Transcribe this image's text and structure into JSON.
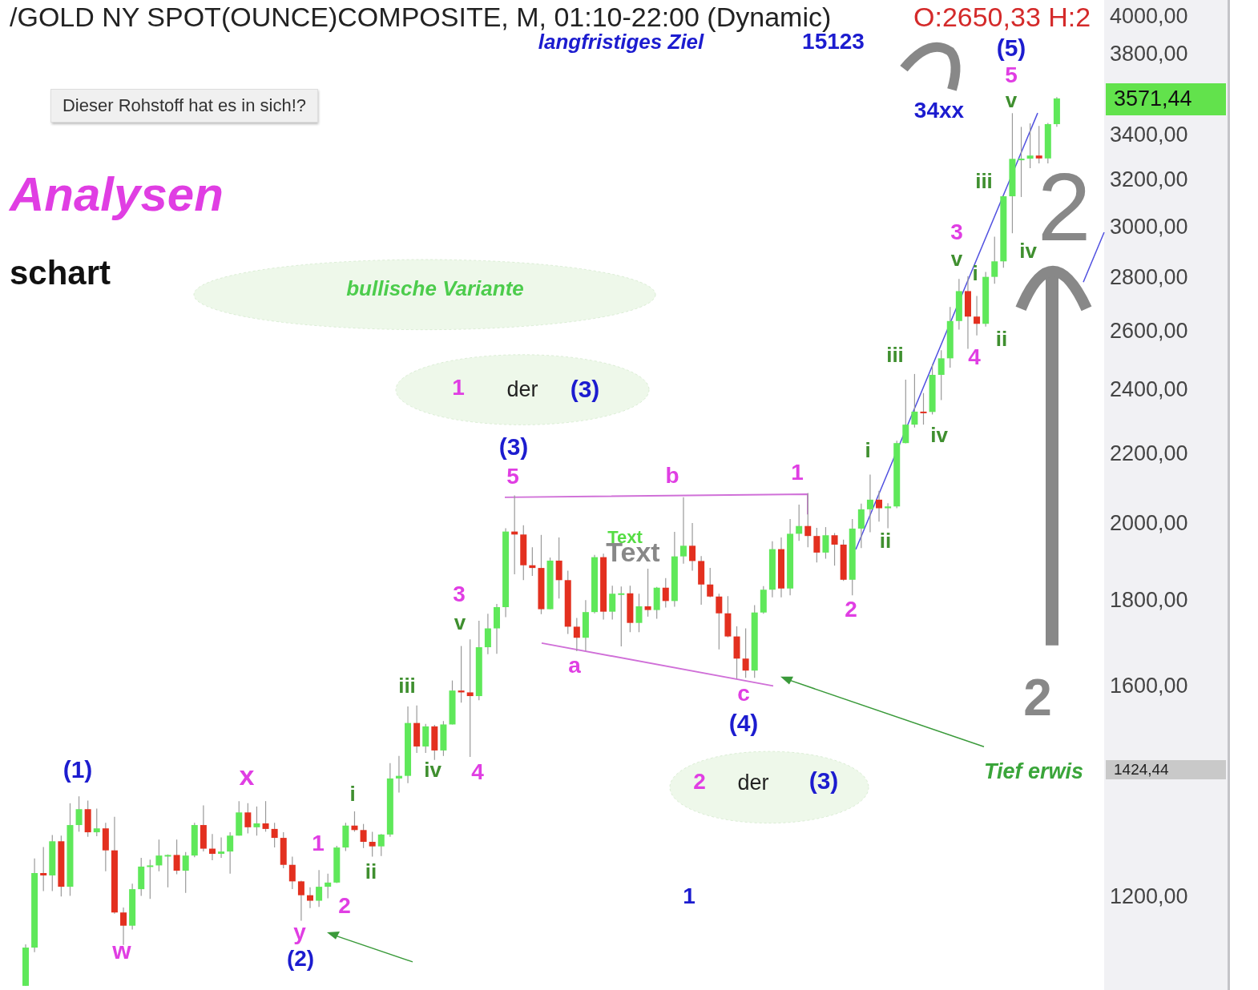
{
  "chart_data": {
    "type": "candlestick",
    "title": "/GOLD NY SPOT(OUNCE)COMPOSITE, M, 01:10-22:00 (Dynamic)",
    "categories": [
      null,
      null,
      null,
      null,
      null,
      null,
      null,
      null,
      null,
      null,
      null,
      null,
      null,
      null,
      null,
      null,
      null,
      null,
      null,
      null,
      null,
      null,
      null,
      null,
      null,
      null,
      null,
      null,
      null,
      null,
      null,
      null,
      null,
      null,
      null,
      null,
      null,
      null,
      null,
      null,
      null,
      null,
      null,
      null,
      null,
      null,
      null,
      null,
      null,
      null,
      null,
      null,
      null,
      null,
      null,
      null,
      null,
      null,
      null,
      null,
      null,
      null,
      null,
      null,
      null,
      null,
      null,
      null,
      null,
      null,
      null,
      null,
      null,
      null,
      null,
      null,
      null,
      null,
      null,
      null,
      null,
      null,
      null,
      null,
      null,
      null,
      null,
      null,
      null,
      null,
      null,
      null,
      null,
      null,
      null,
      null,
      null,
      null,
      null,
      null,
      null,
      null,
      null,
      null,
      null,
      null,
      null,
      null,
      null,
      null,
      null,
      null,
      null,
      null,
      null,
      null,
      null
    ],
    "ohlc": [
      [
        1061,
        1123,
        1061,
        1118
      ],
      [
        1118,
        1263,
        1111,
        1238
      ],
      [
        1238,
        1283,
        1208,
        1234
      ],
      [
        1234,
        1304,
        1208,
        1293
      ],
      [
        1293,
        1303,
        1199,
        1215
      ],
      [
        1215,
        1362,
        1200,
        1322
      ],
      [
        1322,
        1375,
        1310,
        1351
      ],
      [
        1351,
        1367,
        1301,
        1309
      ],
      [
        1309,
        1352,
        1302,
        1316
      ],
      [
        1316,
        1326,
        1241,
        1277
      ],
      [
        1277,
        1337,
        1171,
        1173
      ],
      [
        1173,
        1181,
        1122,
        1152
      ],
      [
        1152,
        1220,
        1146,
        1211
      ],
      [
        1211,
        1264,
        1200,
        1249
      ],
      [
        1249,
        1261,
        1195,
        1251
      ],
      [
        1251,
        1296,
        1241,
        1268
      ],
      [
        1268,
        1270,
        1214,
        1269
      ],
      [
        1269,
        1296,
        1236,
        1242
      ],
      [
        1242,
        1274,
        1205,
        1268
      ],
      [
        1268,
        1326,
        1265,
        1322
      ],
      [
        1322,
        1358,
        1275,
        1280
      ],
      [
        1280,
        1306,
        1260,
        1271
      ],
      [
        1271,
        1300,
        1264,
        1275
      ],
      [
        1275,
        1309,
        1237,
        1303
      ],
      [
        1303,
        1366,
        1303,
        1345
      ],
      [
        1345,
        1362,
        1307,
        1318
      ],
      [
        1318,
        1356,
        1303,
        1325
      ],
      [
        1325,
        1366,
        1310,
        1315
      ],
      [
        1315,
        1326,
        1282,
        1299
      ],
      [
        1299,
        1309,
        1246,
        1252
      ],
      [
        1252,
        1266,
        1211,
        1224
      ],
      [
        1224,
        1225,
        1160,
        1201
      ],
      [
        1201,
        1214,
        1180,
        1192
      ],
      [
        1192,
        1243,
        1182,
        1215
      ],
      [
        1215,
        1237,
        1196,
        1222
      ],
      [
        1222,
        1285,
        1221,
        1282
      ],
      [
        1282,
        1326,
        1276,
        1321
      ],
      [
        1321,
        1347,
        1310,
        1313
      ],
      [
        1313,
        1324,
        1281,
        1292
      ],
      [
        1292,
        1310,
        1266,
        1284
      ],
      [
        1284,
        1306,
        1267,
        1305
      ],
      [
        1305,
        1439,
        1301,
        1409
      ],
      [
        1409,
        1453,
        1382,
        1414
      ],
      [
        1414,
        1555,
        1400,
        1520
      ],
      [
        1520,
        1557,
        1459,
        1472
      ],
      [
        1472,
        1518,
        1459,
        1513
      ],
      [
        1513,
        1516,
        1445,
        1464
      ],
      [
        1464,
        1524,
        1453,
        1517
      ],
      [
        1517,
        1611,
        1517,
        1589
      ],
      [
        1589,
        1689,
        1563,
        1585
      ],
      [
        1585,
        1704,
        1451,
        1577
      ],
      [
        1577,
        1748,
        1568,
        1686
      ],
      [
        1686,
        1765,
        1670,
        1730
      ],
      [
        1730,
        1789,
        1671,
        1781
      ],
      [
        1781,
        1984,
        1757,
        1975
      ],
      [
        1975,
        2075,
        1863,
        1967
      ],
      [
        1967,
        1992,
        1848,
        1886
      ],
      [
        1886,
        1933,
        1859,
        1879
      ],
      [
        1879,
        1966,
        1764,
        1776
      ],
      [
        1776,
        1906,
        1776,
        1898
      ],
      [
        1898,
        1959,
        1802,
        1848
      ],
      [
        1848,
        1872,
        1717,
        1734
      ],
      [
        1734,
        1755,
        1677,
        1708
      ],
      [
        1708,
        1798,
        1678,
        1769
      ],
      [
        1769,
        1913,
        1766,
        1907
      ],
      [
        1907,
        1916,
        1751,
        1770
      ],
      [
        1770,
        1834,
        1751,
        1814
      ],
      [
        1814,
        1832,
        1688,
        1815
      ],
      [
        1815,
        1834,
        1721,
        1743
      ],
      [
        1743,
        1814,
        1721,
        1783
      ],
      [
        1783,
        1877,
        1758,
        1774
      ],
      [
        1774,
        1831,
        1753,
        1829
      ],
      [
        1829,
        1853,
        1780,
        1796
      ],
      [
        1796,
        1974,
        1782,
        1909
      ],
      [
        1909,
        2070,
        1890,
        1937
      ],
      [
        1937,
        1998,
        1872,
        1897
      ],
      [
        1897,
        1910,
        1787,
        1837
      ],
      [
        1837,
        1879,
        1805,
        1807
      ],
      [
        1807,
        1814,
        1681,
        1766
      ],
      [
        1766,
        1808,
        1709,
        1711
      ],
      [
        1711,
        1735,
        1615,
        1660
      ],
      [
        1660,
        1730,
        1617,
        1633
      ],
      [
        1633,
        1786,
        1617,
        1768
      ],
      [
        1768,
        1833,
        1765,
        1824
      ],
      [
        1824,
        1949,
        1805,
        1928
      ],
      [
        1928,
        1959,
        1805,
        1827
      ],
      [
        1827,
        2009,
        1810,
        1969
      ],
      [
        1969,
        2049,
        1950,
        1990
      ],
      [
        1990,
        2082,
        1933,
        1963
      ],
      [
        1963,
        1985,
        1893,
        1919
      ],
      [
        1919,
        1987,
        1903,
        1965
      ],
      [
        1965,
        1971,
        1885,
        1940
      ],
      [
        1940,
        1953,
        1846,
        1849
      ],
      [
        1849,
        2009,
        1810,
        1983
      ],
      [
        1983,
        2052,
        1931,
        2036
      ],
      [
        2036,
        2135,
        1973,
        2063
      ],
      [
        2063,
        2088,
        2002,
        2039
      ],
      [
        2039,
        2053,
        1984,
        2044
      ],
      [
        2044,
        2236,
        2039,
        2229
      ],
      [
        2229,
        2431,
        2228,
        2286
      ],
      [
        2286,
        2450,
        2277,
        2327
      ],
      [
        2327,
        2387,
        2286,
        2326
      ],
      [
        2326,
        2484,
        2318,
        2447
      ],
      [
        2447,
        2531,
        2364,
        2503
      ],
      [
        2503,
        2685,
        2471,
        2634
      ],
      [
        2634,
        2790,
        2603,
        2744
      ],
      [
        2744,
        2801,
        2536,
        2650
      ],
      [
        2650,
        2726,
        2583,
        2624
      ],
      [
        2624,
        2817,
        2614,
        2798
      ],
      [
        2798,
        2956,
        2772,
        2858
      ],
      [
        2858,
        3128,
        2833,
        3124
      ],
      [
        3124,
        3500,
        2970,
        3288
      ],
      [
        3288,
        3435,
        3121,
        3289
      ],
      [
        3289,
        3452,
        3246,
        3303
      ],
      [
        3303,
        3439,
        3268,
        3290
      ],
      [
        3290,
        3454,
        3268,
        3448
      ],
      [
        3448,
        3578,
        3436,
        3571.44
      ]
    ],
    "colors": [
      "#5fe85a",
      "#5fe85a",
      "#e3301f",
      "#5fe85a",
      "#e3301f",
      "#5fe85a",
      "#5fe85a",
      "#e3301f",
      "#5fe85a",
      "#e3301f",
      "#e3301f",
      "#e3301f",
      "#5fe85a",
      "#5fe85a",
      "#5fe85a",
      "#5fe85a",
      "#5fe85a",
      "#e3301f",
      "#5fe85a",
      "#5fe85a",
      "#e3301f",
      "#e3301f",
      "#5fe85a",
      "#5fe85a",
      "#5fe85a",
      "#e3301f",
      "#5fe85a",
      "#e3301f",
      "#e3301f",
      "#e3301f",
      "#e3301f",
      "#e3301f",
      "#e3301f",
      "#5fe85a",
      "#5fe85a",
      "#5fe85a",
      "#5fe85a",
      "#e3301f",
      "#e3301f",
      "#e3301f",
      "#5fe85a",
      "#5fe85a",
      "#5fe85a",
      "#5fe85a",
      "#e3301f",
      "#5fe85a",
      "#e3301f",
      "#5fe85a",
      "#5fe85a",
      "#e3301f",
      "#e3301f",
      "#5fe85a",
      "#5fe85a",
      "#5fe85a",
      "#5fe85a",
      "#e3301f",
      "#e3301f",
      "#e3301f",
      "#e3301f",
      "#5fe85a",
      "#e3301f",
      "#e3301f",
      "#e3301f",
      "#5fe85a",
      "#5fe85a",
      "#e3301f",
      "#5fe85a",
      "#5fe85a",
      "#e3301f",
      "#5fe85a",
      "#e3301f",
      "#5fe85a",
      "#e3301f",
      "#5fe85a",
      "#5fe85a",
      "#e3301f",
      "#e3301f",
      "#e3301f",
      "#e3301f",
      "#e3301f",
      "#e3301f",
      "#e3301f",
      "#5fe85a",
      "#5fe85a",
      "#5fe85a",
      "#e3301f",
      "#5fe85a",
      "#5fe85a",
      "#e3301f",
      "#e3301f",
      "#5fe85a",
      "#e3301f",
      "#e3301f",
      "#5fe85a",
      "#5fe85a",
      "#5fe85a",
      "#e3301f",
      "#5fe85a",
      "#5fe85a",
      "#5fe85a",
      "#5fe85a",
      "#e3301f",
      "#5fe85a",
      "#5fe85a",
      "#5fe85a",
      "#5fe85a",
      "#e3301f",
      "#e3301f",
      "#5fe85a",
      "#5fe85a",
      "#5fe85a",
      "#5fe85a",
      "#5fe85a",
      "#5fe85a",
      "#e3301f",
      "#5fe85a",
      "#5fe85a"
    ],
    "log": "y",
    "ylim": [
      1055,
      4086
    ],
    "yticks": [
      {
        "value": 1200,
        "label": "1200,00"
      },
      {
        "value": 1600,
        "label": "1600,00"
      },
      {
        "value": 1800,
        "label": "1800,00"
      },
      {
        "value": 2000,
        "label": "2000,00"
      },
      {
        "value": 2200,
        "label": "2200,00"
      },
      {
        "value": 2400,
        "label": "2400,00"
      },
      {
        "value": 2600,
        "label": "2600,00"
      },
      {
        "value": 2800,
        "label": "2800,00"
      },
      {
        "value": 3000,
        "label": "3000,00"
      },
      {
        "value": 3200,
        "label": "3200,00"
      },
      {
        "value": 3400,
        "label": "3400,00"
      },
      {
        "value": 3800,
        "label": "3800,00"
      },
      {
        "value": 4000,
        "label": "4000,00"
      }
    ],
    "tick_labels": "y",
    "annotations": [
      "O:2650,33 H:2",
      "langfristiges Ziel",
      "15123",
      "34xx",
      "Dieser Rohstoff hat es in sich!?",
      "Analysen",
      "schart",
      "bullische Variante",
      "1",
      "der",
      "(3)",
      "2",
      "der",
      "(3)",
      "Text",
      "Text",
      "Tief erwis",
      "2",
      "2",
      "1",
      "(1)",
      "x",
      "w",
      "1",
      "2",
      "y",
      "(2)",
      "i",
      "ii",
      "iii",
      "iv",
      "4",
      "3",
      "v",
      "5",
      "(3)",
      "a",
      "b",
      "c",
      "(4)",
      "1",
      "2",
      "i",
      "ii",
      "iii",
      "iv",
      "3",
      "v",
      "i",
      "4",
      "ii",
      "iii",
      "iv",
      "v",
      "5",
      "(5)",
      "3571,44",
      "1424,44"
    ]
  }
}
